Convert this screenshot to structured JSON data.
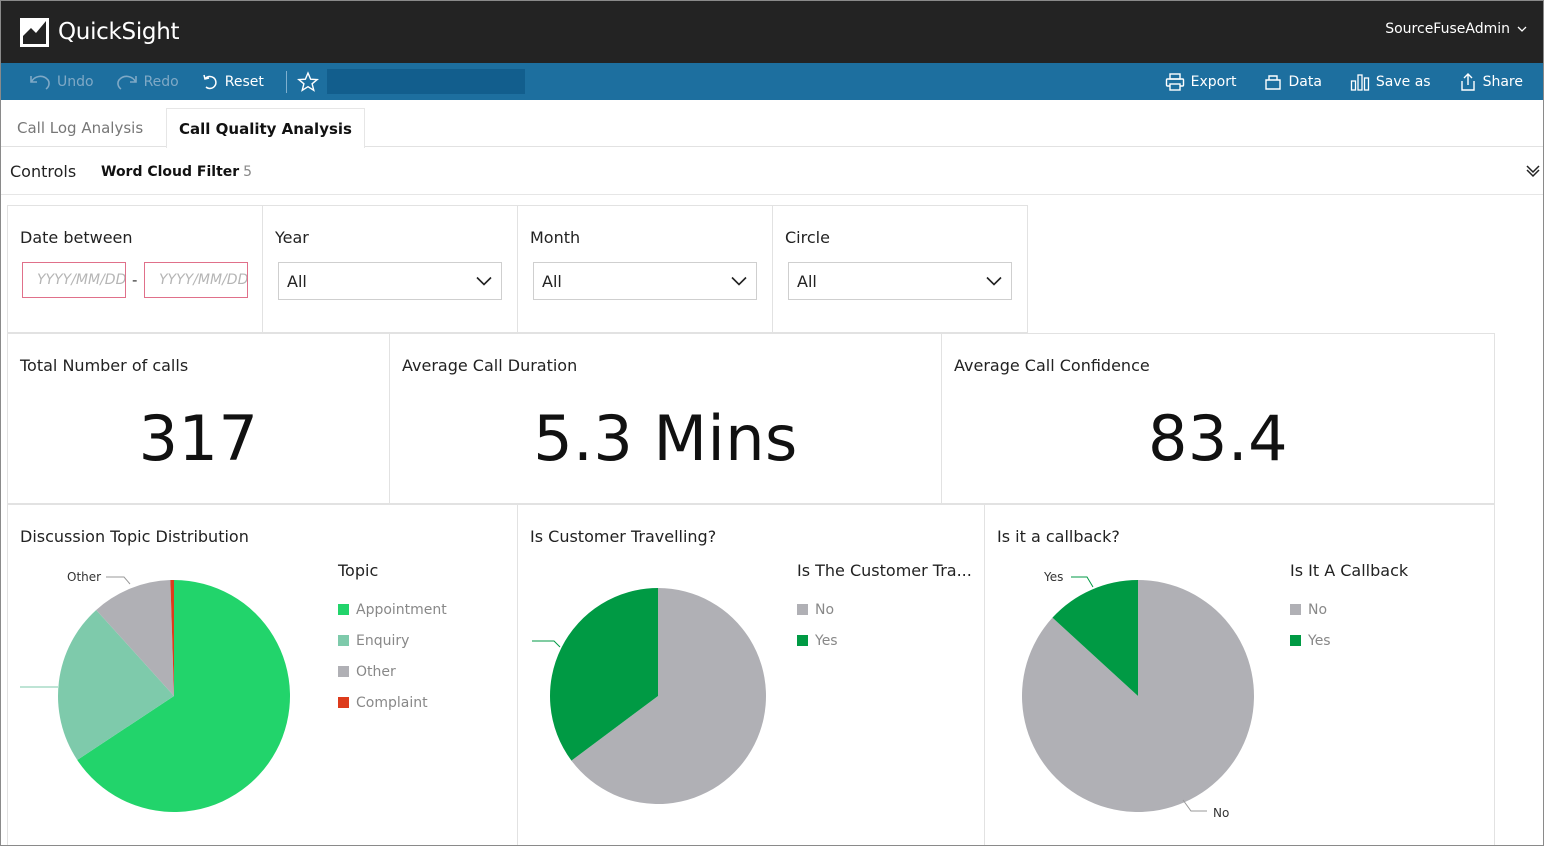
{
  "app": {
    "name": "QuickSight",
    "user": "SourceFuseAdmin"
  },
  "toolbar": {
    "undo": "Undo",
    "redo": "Redo",
    "reset": "Reset",
    "export": "Export",
    "data": "Data",
    "save_as": "Save as",
    "share": "Share"
  },
  "tabs": [
    {
      "label": "Call Log Analysis",
      "active": false
    },
    {
      "label": "Call Quality Analysis",
      "active": true
    }
  ],
  "controls": {
    "label": "Controls",
    "filter_name": "Word Cloud Filter",
    "filter_count": "5"
  },
  "filters": {
    "date": {
      "label": "Date between",
      "from_placeholder": "YYYY/MM/DD",
      "to_placeholder": "YYYY/MM/DD",
      "separator": "-"
    },
    "year": {
      "label": "Year",
      "value": "All"
    },
    "month": {
      "label": "Month",
      "value": "All"
    },
    "circle": {
      "label": "Circle",
      "value": "All"
    }
  },
  "kpis": {
    "total_calls": {
      "label": "Total Number of calls",
      "value": "317"
    },
    "avg_duration": {
      "label": "Average Call Duration",
      "value": "5.3 Mins"
    },
    "avg_confidence": {
      "label": "Average Call Confidence",
      "value": "83.4"
    }
  },
  "colors": {
    "topbar": "#232323",
    "toolbar": "#1d6f9f",
    "appointment": "#22d46b",
    "enquiry": "#7ecaab",
    "other": "#b0b0b5",
    "complaint": "#dd3b1c",
    "yes": "#009a44",
    "no": "#b0b0b5"
  },
  "chart_data": [
    {
      "type": "pie",
      "title": "Discussion Topic Distribution",
      "legend_title": "Topic",
      "legend_placement": "right",
      "categories": [
        "Appointment",
        "Enquiry",
        "Other",
        "Complaint"
      ],
      "values": [
        65.7,
        22.6,
        11.2,
        0.5
      ],
      "callouts": [
        "Other"
      ]
    },
    {
      "type": "pie",
      "title": "Is Customer Travelling?",
      "legend_title": "Is The Customer Tra...",
      "legend_placement": "right",
      "categories": [
        "No",
        "Yes"
      ],
      "values": [
        64.8,
        35.2
      ]
    },
    {
      "type": "pie",
      "title": "Is it a callback?",
      "legend_title": "Is It A Callback",
      "legend_placement": "right",
      "categories": [
        "No",
        "Yes"
      ],
      "values": [
        86.8,
        13.2
      ],
      "callouts": [
        "Yes",
        "No"
      ]
    }
  ]
}
